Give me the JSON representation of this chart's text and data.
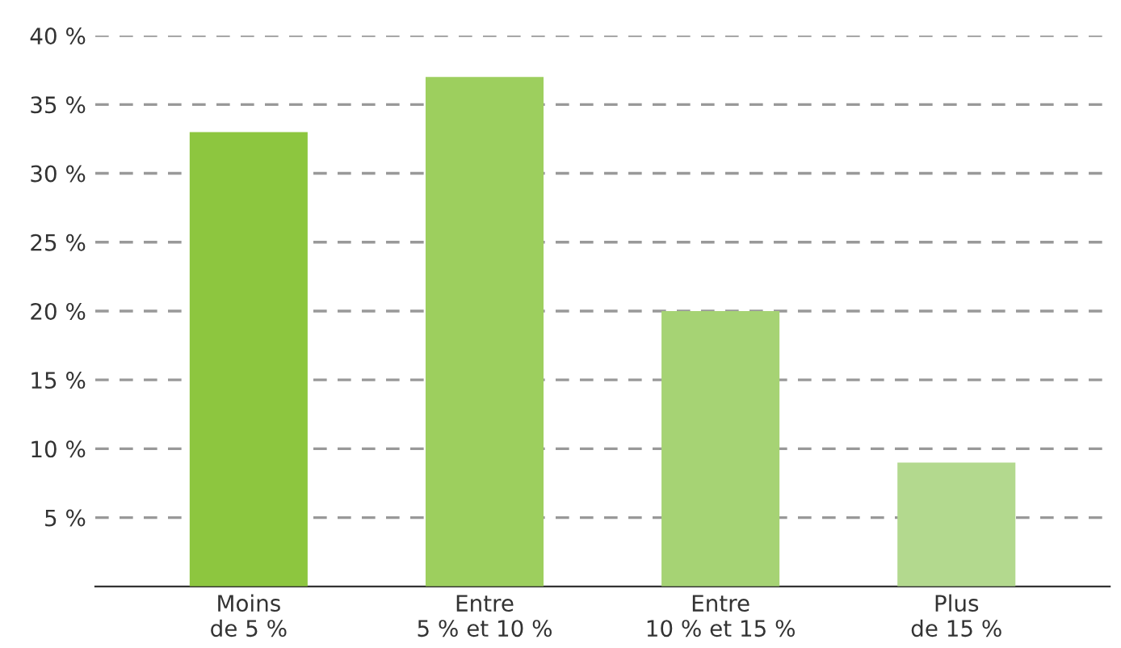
{
  "chart_data": {
    "type": "bar",
    "categories": [
      "Moins\nde 5 %",
      "Entre\n5 % et 10 %",
      "Entre\n10 % et 15 %",
      "Plus\nde 15 %"
    ],
    "values": [
      33,
      37,
      20,
      9
    ],
    "colors": [
      "#8dc63f",
      "#9dcf5e",
      "#a6d374",
      "#b3d98e"
    ],
    "ylim": [
      0,
      40
    ],
    "yticks": [
      {
        "value": 5,
        "label": "5 %"
      },
      {
        "value": 10,
        "label": "10 %"
      },
      {
        "value": 15,
        "label": "15 %"
      },
      {
        "value": 20,
        "label": "20 %"
      },
      {
        "value": 25,
        "label": "25 %"
      },
      {
        "value": 30,
        "label": "30 %"
      },
      {
        "value": 35,
        "label": "35 %"
      },
      {
        "value": 40,
        "label": "40 %"
      }
    ],
    "grid": "y"
  }
}
